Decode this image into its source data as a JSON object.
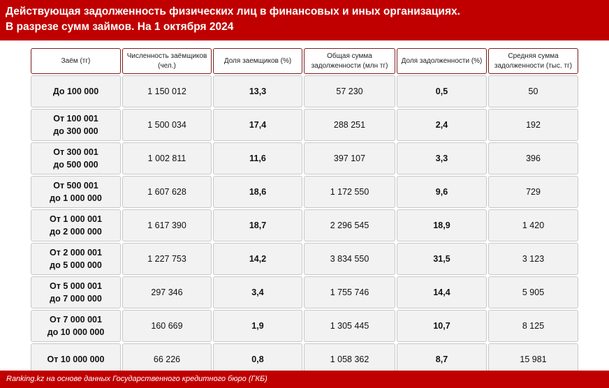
{
  "header": {
    "line1": "Действующая задолженность физических лиц в финансовых и иных организациях.",
    "line2": "В разрезе сумм займов. На 1 октября 2024"
  },
  "table": {
    "columns": [
      "Заём (тг)",
      "Численность заёмщиков (чел.)",
      "Доля заемщиков (%)",
      "Общая сумма задолженности (млн тг)",
      "Доля задолженности (%)",
      "Средняя сумма задолженности (тыс. тг)"
    ],
    "rows": [
      {
        "loan": "До 100 000",
        "borrowers": "1 150 012",
        "borrowers_share": "13,3",
        "total_debt": "57 230",
        "debt_share": "0,5",
        "avg_debt": "50"
      },
      {
        "loan": "От 100 001\nдо 300 000",
        "borrowers": "1 500 034",
        "borrowers_share": "17,4",
        "total_debt": "288 251",
        "debt_share": "2,4",
        "avg_debt": "192"
      },
      {
        "loan": "От 300 001\nдо 500 000",
        "borrowers": "1 002 811",
        "borrowers_share": "11,6",
        "total_debt": "397 107",
        "debt_share": "3,3",
        "avg_debt": "396"
      },
      {
        "loan": "От 500 001\nдо 1 000 000",
        "borrowers": "1 607 628",
        "borrowers_share": "18,6",
        "total_debt": "1 172 550",
        "debt_share": "9,6",
        "avg_debt": "729"
      },
      {
        "loan": "От 1 000 001\nдо 2 000 000",
        "borrowers": "1 617 390",
        "borrowers_share": "18,7",
        "total_debt": "2 296 545",
        "debt_share": "18,9",
        "avg_debt": "1 420"
      },
      {
        "loan": "От 2 000 001\nдо 5 000 000",
        "borrowers": "1 227 753",
        "borrowers_share": "14,2",
        "total_debt": "3 834 550",
        "debt_share": "31,5",
        "avg_debt": "3 123"
      },
      {
        "loan": "От 5 000 001\nдо 7 000 000",
        "borrowers": "297 346",
        "borrowers_share": "3,4",
        "total_debt": "1 755 746",
        "debt_share": "14,4",
        "avg_debt": "5 905"
      },
      {
        "loan": "От 7 000 001\nдо 10 000 000",
        "borrowers": "160 669",
        "borrowers_share": "1,9",
        "total_debt": "1 305 445",
        "debt_share": "10,7",
        "avg_debt": "8 125"
      },
      {
        "loan": "От 10 000 000",
        "borrowers": "66 226",
        "borrowers_share": "0,8",
        "total_debt": "1 058 362",
        "debt_share": "8,7",
        "avg_debt": "15 981"
      }
    ]
  },
  "footer": {
    "source": "Ranking.kz на основе данных Государственного кредитного бюро (ГКБ)"
  },
  "colors": {
    "brand": "#c00000",
    "cell_bg": "#f2f2f2"
  }
}
